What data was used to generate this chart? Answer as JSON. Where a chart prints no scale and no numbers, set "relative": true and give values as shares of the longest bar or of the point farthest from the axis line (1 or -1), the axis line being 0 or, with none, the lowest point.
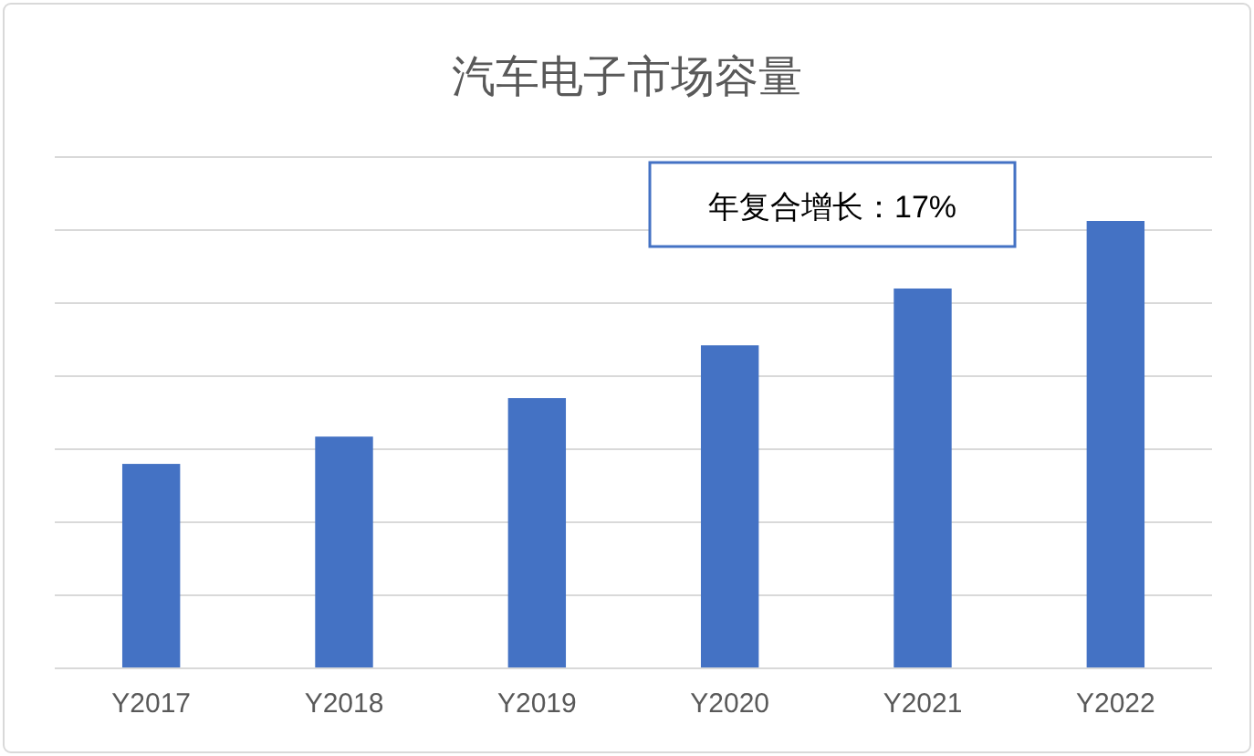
{
  "chart_data": {
    "type": "bar",
    "title": "汽车电子市场容量",
    "categories": [
      "Y2017",
      "Y2018",
      "Y2019",
      "Y2020",
      "Y2021",
      "Y2022"
    ],
    "values": [
      0.457,
      0.518,
      0.604,
      0.722,
      0.849,
      1
    ],
    "color": "#4472c4",
    "relative": true,
    "grid": "y",
    "annotations": [
      "年复合增长：17%"
    ]
  }
}
